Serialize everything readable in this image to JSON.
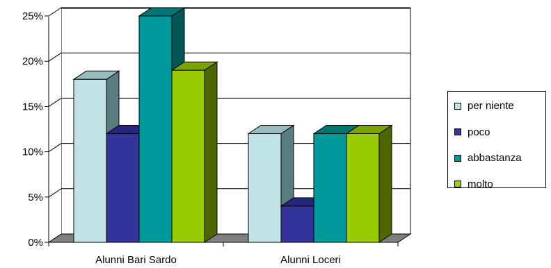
{
  "chart_data": {
    "type": "bar",
    "categories": [
      "Alunni Bari Sardo",
      "Alunni Loceri"
    ],
    "series": [
      {
        "name": "per niente",
        "values": [
          18,
          12
        ],
        "color": "#C0E4E6",
        "side": "#5A7E80",
        "top": "#98BCBE"
      },
      {
        "name": "poco",
        "values": [
          12,
          4
        ],
        "color": "#333399",
        "side": "#1A1A66",
        "top": "#26267E"
      },
      {
        "name": "abbastanza",
        "values": [
          25,
          12
        ],
        "color": "#009999",
        "side": "#005555",
        "top": "#007373"
      },
      {
        "name": "molto",
        "values": [
          19,
          12
        ],
        "color": "#99CC00",
        "side": "#4D6600",
        "top": "#7AA300"
      }
    ],
    "y_ticks": [
      "0%",
      "5%",
      "10%",
      "15%",
      "20%",
      "25%"
    ],
    "ylim": [
      0,
      25
    ],
    "ytick_step": 5,
    "grid": true,
    "legend": "right",
    "three_d": true
  }
}
